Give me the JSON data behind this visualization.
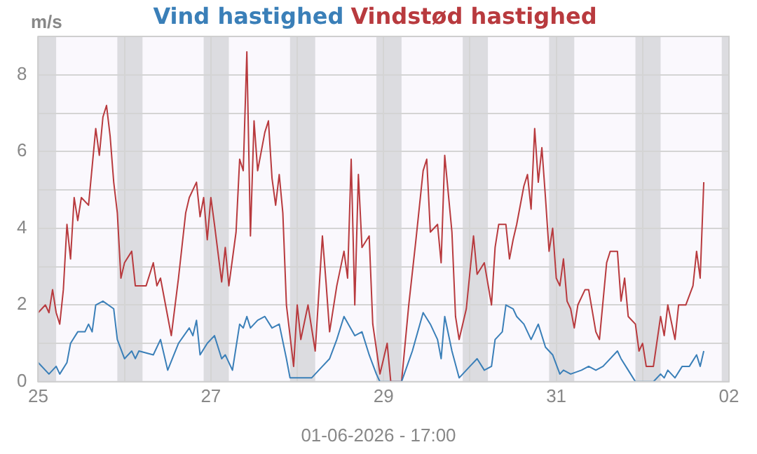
{
  "chart_data": {
    "type": "line",
    "ylabel": "m/s",
    "legend": "top",
    "grid": true,
    "marker": "none",
    "line_style": "solid",
    "xlim": [
      "2026-05-25",
      "2026-06-02"
    ],
    "xticks": [
      {
        "value": "2026-05-25",
        "label": "25"
      },
      {
        "value": "2026-05-26",
        "label": null
      },
      {
        "value": "2026-05-27",
        "label": "27"
      },
      {
        "value": "2026-05-28",
        "label": null
      },
      {
        "value": "2026-05-29",
        "label": "29"
      },
      {
        "value": "2026-05-30",
        "label": null
      },
      {
        "value": "2026-05-31",
        "label": "31"
      },
      {
        "value": "2026-06-01",
        "label": null
      },
      {
        "value": "2026-06-02",
        "label": "02"
      }
    ],
    "ylim": [
      0,
      9
    ],
    "yticks": [
      0,
      {
        "value": 1,
        "label": null
      },
      2,
      {
        "value": 3,
        "label": null
      },
      4,
      {
        "value": 5,
        "label": null
      },
      6,
      {
        "value": 7,
        "label": null
      },
      8
    ],
    "annotations": [
      "01-06-2026 - 17:00"
    ],
    "bands": [
      {
        "axis": "x",
        "from": "2026-05-25T00:00",
        "to": "2026-05-25T05:00",
        "color": "#dcdce0"
      },
      {
        "axis": "x",
        "from": "2026-05-25T22:00",
        "to": "2026-05-26T05:00",
        "color": "#dcdce0"
      },
      {
        "axis": "x",
        "from": "2026-05-26T22:00",
        "to": "2026-05-27T05:00",
        "color": "#dcdce0"
      },
      {
        "axis": "x",
        "from": "2026-05-27T22:00",
        "to": "2026-05-28T05:00",
        "color": "#dcdce0"
      },
      {
        "axis": "x",
        "from": "2026-05-28T22:00",
        "to": "2026-05-29T05:00",
        "color": "#dcdce0"
      },
      {
        "axis": "x",
        "from": "2026-05-29T22:00",
        "to": "2026-05-30T05:00",
        "color": "#dcdce0"
      },
      {
        "axis": "x",
        "from": "2026-05-30T22:00",
        "to": "2026-05-31T05:00",
        "color": "#dcdce0"
      },
      {
        "axis": "x",
        "from": "2026-05-31T22:00",
        "to": "2026-06-01T05:00",
        "color": "#dcdce0"
      },
      {
        "axis": "x",
        "from": "2026-06-01T22:00",
        "to": "2026-06-02T00:00",
        "color": "#dcdce0"
      }
    ],
    "series": [
      {
        "name": "Vind hastighed",
        "color": "#3a7fb8",
        "x": [
          "2026-05-25T00:00",
          "2026-05-25T03:00",
          "2026-05-25T05:00",
          "2026-05-25T06:00",
          "2026-05-25T08:00",
          "2026-05-25T09:00",
          "2026-05-25T11:00",
          "2026-05-25T13:00",
          "2026-05-25T14:00",
          "2026-05-25T15:00",
          "2026-05-25T16:00",
          "2026-05-25T18:00",
          "2026-05-25T21:00",
          "2026-05-25T22:00",
          "2026-05-26T00:00",
          "2026-05-26T02:00",
          "2026-05-26T03:00",
          "2026-05-26T04:00",
          "2026-05-26T08:00",
          "2026-05-26T10:00",
          "2026-05-26T12:00",
          "2026-05-26T15:00",
          "2026-05-26T18:00",
          "2026-05-26T19:00",
          "2026-05-26T20:00",
          "2026-05-26T21:00",
          "2026-05-26T23:00",
          "2026-05-27T01:00",
          "2026-05-27T03:00",
          "2026-05-27T04:00",
          "2026-05-27T06:00",
          "2026-05-27T08:00",
          "2026-05-27T09:00",
          "2026-05-27T10:00",
          "2026-05-27T11:00",
          "2026-05-27T13:00",
          "2026-05-27T15:00",
          "2026-05-27T17:00",
          "2026-05-27T19:00",
          "2026-05-27T21:00",
          "2026-05-27T22:00",
          "2026-05-28T00:00",
          "2026-05-28T04:00",
          "2026-05-28T07:00",
          "2026-05-28T09:00",
          "2026-05-28T11:00",
          "2026-05-28T13:00",
          "2026-05-28T16:00",
          "2026-05-28T18:00",
          "2026-05-28T20:00",
          "2026-05-28T22:00",
          "2026-05-28T23:00",
          "2026-05-29T05:00",
          "2026-05-29T08:00",
          "2026-05-29T11:00",
          "2026-05-29T13:00",
          "2026-05-29T15:00",
          "2026-05-29T16:00",
          "2026-05-29T17:00",
          "2026-05-29T19:00",
          "2026-05-29T21:00",
          "2026-05-30T00:00",
          "2026-05-30T02:00",
          "2026-05-30T04:00",
          "2026-05-30T06:00",
          "2026-05-30T07:00",
          "2026-05-30T09:00",
          "2026-05-30T10:00",
          "2026-05-30T12:00",
          "2026-05-30T13:00",
          "2026-05-30T15:00",
          "2026-05-30T17:00",
          "2026-05-30T19:00",
          "2026-05-30T21:00",
          "2026-05-30T23:00",
          "2026-05-31T01:00",
          "2026-05-31T02:00",
          "2026-05-31T04:00",
          "2026-05-31T07:00",
          "2026-05-31T09:00",
          "2026-05-31T11:00",
          "2026-05-31T13:00",
          "2026-05-31T17:00",
          "2026-05-31T18:00",
          "2026-05-31T20:00",
          "2026-05-31T22:00",
          "2026-06-01T03:00",
          "2026-06-01T05:00",
          "2026-06-01T06:00",
          "2026-06-01T07:00",
          "2026-06-01T09:00",
          "2026-06-01T11:00",
          "2026-06-01T13:00",
          "2026-06-01T15:00",
          "2026-06-01T16:00",
          "2026-06-01T17:00"
        ],
        "values": [
          0.5,
          0.2,
          0.4,
          0.2,
          0.5,
          1.0,
          1.3,
          1.3,
          1.5,
          1.3,
          2.0,
          2.1,
          1.9,
          1.1,
          0.6,
          0.8,
          0.6,
          0.8,
          0.7,
          1.1,
          0.3,
          1.0,
          1.4,
          1.2,
          1.6,
          0.7,
          1.0,
          1.2,
          0.6,
          0.7,
          0.3,
          1.5,
          1.4,
          1.7,
          1.4,
          1.6,
          1.7,
          1.4,
          1.5,
          0.6,
          0.1,
          0.1,
          0.1,
          0.4,
          0.6,
          1.1,
          1.7,
          1.2,
          1.3,
          0.7,
          0.2,
          0,
          0,
          0.8,
          1.8,
          1.5,
          1.1,
          0.6,
          1.7,
          0.8,
          0.1,
          0.4,
          0.6,
          0.3,
          0.4,
          1.1,
          1.3,
          2.0,
          1.9,
          1.7,
          1.5,
          1.1,
          1.5,
          0.9,
          0.7,
          0.2,
          0.3,
          0.2,
          0.3,
          0.4,
          0.3,
          0.4,
          0.8,
          0.6,
          0.3,
          0,
          0,
          0.2,
          0.1,
          0.3,
          0.1,
          0.4,
          0.4,
          0.7,
          0.4,
          0.8
        ]
      },
      {
        "name": "Vindstød hastighed",
        "color": "#b83a3e",
        "x": [
          "2026-05-25T00:00",
          "2026-05-25T02:00",
          "2026-05-25T03:00",
          "2026-05-25T04:00",
          "2026-05-25T05:00",
          "2026-05-25T06:00",
          "2026-05-25T07:00",
          "2026-05-25T08:00",
          "2026-05-25T09:00",
          "2026-05-25T10:00",
          "2026-05-25T11:00",
          "2026-05-25T12:00",
          "2026-05-25T14:00",
          "2026-05-25T16:00",
          "2026-05-25T17:00",
          "2026-05-25T18:00",
          "2026-05-25T19:00",
          "2026-05-25T20:00",
          "2026-05-25T21:00",
          "2026-05-25T22:00",
          "2026-05-25T23:00",
          "2026-05-26T00:00",
          "2026-05-26T02:00",
          "2026-05-26T03:00",
          "2026-05-26T06:00",
          "2026-05-26T08:00",
          "2026-05-26T09:00",
          "2026-05-26T10:00",
          "2026-05-26T12:00",
          "2026-05-26T13:00",
          "2026-05-26T15:00",
          "2026-05-26T17:00",
          "2026-05-26T18:00",
          "2026-05-26T20:00",
          "2026-05-26T21:00",
          "2026-05-26T22:00",
          "2026-05-26T23:00",
          "2026-05-27T00:00",
          "2026-05-27T01:00",
          "2026-05-27T03:00",
          "2026-05-27T04:00",
          "2026-05-27T05:00",
          "2026-05-27T07:00",
          "2026-05-27T08:00",
          "2026-05-27T09:00",
          "2026-05-27T10:00",
          "2026-05-27T11:00",
          "2026-05-27T12:00",
          "2026-05-27T13:00",
          "2026-05-27T15:00",
          "2026-05-27T16:00",
          "2026-05-27T17:00",
          "2026-05-27T18:00",
          "2026-05-27T19:00",
          "2026-05-27T20:00",
          "2026-05-27T21:00",
          "2026-05-27T22:00",
          "2026-05-27T23:00",
          "2026-05-28T00:00",
          "2026-05-28T01:00",
          "2026-05-28T03:00",
          "2026-05-28T05:00",
          "2026-05-28T07:00",
          "2026-05-28T08:00",
          "2026-05-28T09:00",
          "2026-05-28T11:00",
          "2026-05-28T13:00",
          "2026-05-28T14:00",
          "2026-05-28T15:00",
          "2026-05-28T16:00",
          "2026-05-28T17:00",
          "2026-05-28T18:00",
          "2026-05-28T20:00",
          "2026-05-28T21:00",
          "2026-05-28T23:00",
          "2026-05-29T00:00",
          "2026-05-29T01:00",
          "2026-05-29T02:00",
          "2026-05-29T05:00",
          "2026-05-29T07:00",
          "2026-05-29T09:00",
          "2026-05-29T11:00",
          "2026-05-29T12:00",
          "2026-05-29T13:00",
          "2026-05-29T15:00",
          "2026-05-29T16:00",
          "2026-05-29T17:00",
          "2026-05-29T19:00",
          "2026-05-29T20:00",
          "2026-05-29T21:00",
          "2026-05-29T23:00",
          "2026-05-30T01:00",
          "2026-05-30T02:00",
          "2026-05-30T04:00",
          "2026-05-30T06:00",
          "2026-05-30T07:00",
          "2026-05-30T08:00",
          "2026-05-30T10:00",
          "2026-05-30T11:00",
          "2026-05-30T12:00",
          "2026-05-30T13:00",
          "2026-05-30T15:00",
          "2026-05-30T16:00",
          "2026-05-30T17:00",
          "2026-05-30T18:00",
          "2026-05-30T19:00",
          "2026-05-30T20:00",
          "2026-05-30T21:00",
          "2026-05-30T22:00",
          "2026-05-30T23:00",
          "2026-05-31T00:00",
          "2026-05-31T01:00",
          "2026-05-31T02:00",
          "2026-05-31T03:00",
          "2026-05-31T04:00",
          "2026-05-31T05:00",
          "2026-05-31T06:00",
          "2026-05-31T08:00",
          "2026-05-31T09:00",
          "2026-05-31T11:00",
          "2026-05-31T12:00",
          "2026-05-31T14:00",
          "2026-05-31T15:00",
          "2026-05-31T17:00",
          "2026-05-31T18:00",
          "2026-05-31T19:00",
          "2026-05-31T20:00",
          "2026-05-31T22:00",
          "2026-05-31T23:00",
          "2026-06-01T00:00",
          "2026-06-01T01:00",
          "2026-06-01T03:00",
          "2026-06-01T05:00",
          "2026-06-01T06:00",
          "2026-06-01T07:00",
          "2026-06-01T09:00",
          "2026-06-01T10:00",
          "2026-06-01T12:00",
          "2026-06-01T14:00",
          "2026-06-01T15:00",
          "2026-06-01T16:00",
          "2026-06-01T17:00"
        ],
        "values": [
          1.8,
          2.0,
          1.8,
          2.4,
          1.8,
          1.5,
          2.4,
          4.1,
          3.2,
          4.8,
          4.2,
          4.8,
          4.6,
          6.6,
          5.9,
          6.9,
          7.2,
          6.4,
          5.2,
          4.4,
          2.7,
          3.1,
          3.4,
          2.5,
          2.5,
          3.1,
          2.5,
          2.7,
          1.7,
          1.2,
          2.7,
          4.4,
          4.8,
          5.2,
          4.3,
          4.8,
          3.7,
          4.8,
          4.1,
          2.6,
          3.5,
          2.5,
          3.9,
          5.8,
          5.5,
          8.6,
          3.8,
          6.8,
          5.5,
          6.5,
          6.8,
          5.3,
          4.6,
          5.4,
          4.4,
          2.0,
          1.2,
          0.4,
          2.0,
          1.1,
          2.0,
          0.8,
          3.8,
          2.6,
          1.3,
          2.5,
          3.4,
          2.7,
          5.8,
          2.0,
          5.4,
          3.5,
          3.8,
          1.5,
          0.2,
          0.6,
          1.0,
          0,
          0,
          2.0,
          3.7,
          5.5,
          5.8,
          3.9,
          4.1,
          3.1,
          5.9,
          3.9,
          1.7,
          1.1,
          1.9,
          3.8,
          2.8,
          3.1,
          2.0,
          3.5,
          4.1,
          4.1,
          3.2,
          3.7,
          4.1,
          5.1,
          5.4,
          4.5,
          6.6,
          5.2,
          6.1,
          4.8,
          3.4,
          4.0,
          2.7,
          2.5,
          3.2,
          2.1,
          1.9,
          1.4,
          2.0,
          2.4,
          2.4,
          1.3,
          1.1,
          3.1,
          3.4,
          3.4,
          2.1,
          2.7,
          1.7,
          1.5,
          0.8,
          1.0,
          0.4,
          0.4,
          1.7,
          1.2,
          2.0,
          1.1,
          2.0,
          2.0,
          2.5,
          3.4,
          2.7,
          5.2
        ]
      }
    ]
  }
}
